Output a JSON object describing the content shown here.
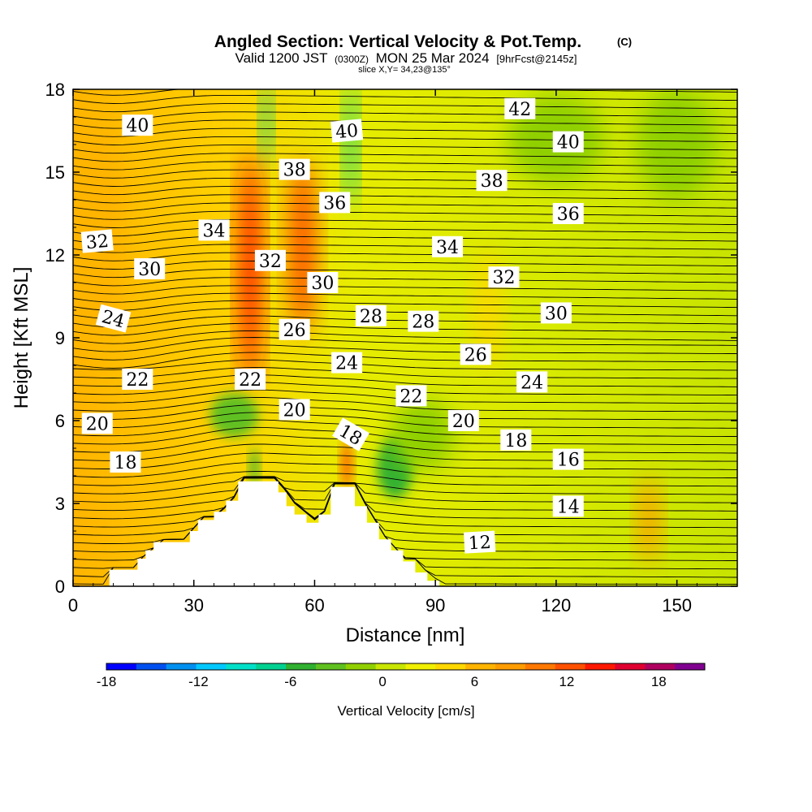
{
  "chart_data": {
    "type": "heatmap",
    "title": "Angled Section: Vertical Velocity & Pot.Temp.",
    "title_units": "(C)",
    "subtitle_main": "Valid 1200 JST",
    "subtitle_small": "(0300Z)",
    "subtitle_date": "MON 25 Mar 2024",
    "subtitle_fcst": "[9hrFcst@2145z]",
    "slice_note": "slice X,Y= 34,23@135°",
    "xlabel": "Distance [nm]",
    "ylabel": "Height [Kft MSL]",
    "xlim": [
      0,
      165
    ],
    "ylim": [
      0,
      18
    ],
    "x_ticks": [
      "0",
      "30",
      "60",
      "90",
      "120",
      "150"
    ],
    "x_tick_values": [
      0,
      30,
      60,
      90,
      120,
      150
    ],
    "y_ticks": [
      "0",
      "3",
      "6",
      "9",
      "12",
      "15",
      "18"
    ],
    "y_tick_values": [
      0,
      3,
      6,
      9,
      12,
      15,
      18
    ],
    "colorbar": {
      "label": "Vertical Velocity [cm/s]",
      "range": [
        -18,
        21
      ],
      "tick_labels": [
        "-18",
        "-12",
        "-6",
        "0",
        "6",
        "12",
        "18"
      ],
      "tick_values": [
        -18,
        -12,
        -6,
        0,
        6,
        12,
        18
      ],
      "colors": [
        "#0000ff",
        "#0050f0",
        "#0090f0",
        "#00c8ff",
        "#00e0c8",
        "#00d090",
        "#30b030",
        "#60c020",
        "#90d000",
        "#c8e600",
        "#f0f000",
        "#ffd800",
        "#ffb400",
        "#ff9c00",
        "#ff7800",
        "#ff5000",
        "#ff1800",
        "#e00030",
        "#b00060",
        "#800090"
      ]
    },
    "terrain_kft": [
      [
        0,
        0
      ],
      [
        9,
        0
      ],
      [
        9,
        0.6
      ],
      [
        10,
        0.6
      ],
      [
        10,
        0.6
      ],
      [
        16,
        0.6
      ],
      [
        16,
        1
      ],
      [
        18,
        1
      ],
      [
        18,
        1.3
      ],
      [
        20,
        1.3
      ],
      [
        20,
        1.6
      ],
      [
        29,
        1.6
      ],
      [
        29,
        2
      ],
      [
        31,
        2
      ],
      [
        31,
        2.4
      ],
      [
        35,
        2.4
      ],
      [
        35,
        2.7
      ],
      [
        38,
        2.7
      ],
      [
        38,
        3.1
      ],
      [
        41,
        3.1
      ],
      [
        41,
        3.8
      ],
      [
        51,
        3.8
      ],
      [
        51,
        3.4
      ],
      [
        53,
        3.4
      ],
      [
        53,
        2.9
      ],
      [
        55,
        2.9
      ],
      [
        55,
        2.6
      ],
      [
        58,
        2.6
      ],
      [
        58,
        2.3
      ],
      [
        61,
        2.3
      ],
      [
        61,
        2.6
      ],
      [
        64,
        2.6
      ],
      [
        64,
        3.6
      ],
      [
        70,
        3.6
      ],
      [
        70,
        2.9
      ],
      [
        73,
        2.9
      ],
      [
        73,
        2.3
      ],
      [
        76,
        2.3
      ],
      [
        76,
        1.7
      ],
      [
        79,
        1.7
      ],
      [
        79,
        1.3
      ],
      [
        82,
        1.3
      ],
      [
        82,
        0.9
      ],
      [
        85,
        0.9
      ],
      [
        85,
        0.5
      ],
      [
        88,
        0.5
      ],
      [
        88,
        0.2
      ],
      [
        91,
        0.2
      ],
      [
        91,
        0
      ],
      [
        165,
        0
      ]
    ],
    "velocity_features": [
      {
        "x": 44,
        "y": 11.5,
        "rx": 2.5,
        "ry": 4.2,
        "value": 14
      },
      {
        "x": 57,
        "y": 12.3,
        "rx": 3.2,
        "ry": 3.2,
        "value": 12
      },
      {
        "x": 68,
        "y": 4.4,
        "rx": 1.2,
        "ry": 0.9,
        "value": 13
      },
      {
        "x": 143,
        "y": 2.4,
        "rx": 2.4,
        "ry": 1.6,
        "value": 9
      },
      {
        "x": 103,
        "y": 10,
        "rx": 3,
        "ry": 2.2,
        "value": 5
      },
      {
        "x": 6,
        "y": 13,
        "rx": 6,
        "ry": 4,
        "value": 6
      },
      {
        "x": 48,
        "y": 16.8,
        "rx": 1.2,
        "ry": 1.5,
        "value": -7
      },
      {
        "x": 69,
        "y": 16,
        "rx": 1.4,
        "ry": 2.3,
        "value": -8
      },
      {
        "x": 80,
        "y": 4.3,
        "rx": 4.5,
        "ry": 1.1,
        "value": -6
      },
      {
        "x": 45,
        "y": 4.3,
        "rx": 1,
        "ry": 0.7,
        "value": -6
      },
      {
        "x": 40,
        "y": 6.2,
        "rx": 6,
        "ry": 0.8,
        "value": -3
      },
      {
        "x": 87,
        "y": 5.5,
        "rx": 8,
        "ry": 1.3,
        "value": -2
      },
      {
        "x": 120,
        "y": 16.2,
        "rx": 12,
        "ry": 1.6,
        "value": -2
      },
      {
        "x": 150,
        "y": 16,
        "rx": 10,
        "ry": 2,
        "value": -2
      }
    ],
    "contour_labels": [
      {
        "text": "42",
        "x": 111,
        "y": 17.3,
        "angle": 0
      },
      {
        "text": "40",
        "x": 16,
        "y": 16.7,
        "angle": 0
      },
      {
        "text": "40",
        "x": 68,
        "y": 16.5,
        "angle": -5
      },
      {
        "text": "40",
        "x": 123,
        "y": 16.1,
        "angle": 0
      },
      {
        "text": "38",
        "x": 55,
        "y": 15.1,
        "angle": 0
      },
      {
        "text": "38",
        "x": 104,
        "y": 14.7,
        "angle": 0
      },
      {
        "text": "36",
        "x": 65,
        "y": 13.9,
        "angle": 0
      },
      {
        "text": "36",
        "x": 123,
        "y": 13.5,
        "angle": 0
      },
      {
        "text": "34",
        "x": 35,
        "y": 12.9,
        "angle": 0
      },
      {
        "text": "34",
        "x": 93,
        "y": 12.3,
        "angle": 0
      },
      {
        "text": "32",
        "x": 6,
        "y": 12.5,
        "angle": -5
      },
      {
        "text": "32",
        "x": 49,
        "y": 11.8,
        "angle": 0
      },
      {
        "text": "32",
        "x": 107,
        "y": 11.2,
        "angle": 0
      },
      {
        "text": "30",
        "x": 19,
        "y": 11.5,
        "angle": 0
      },
      {
        "text": "30",
        "x": 62,
        "y": 11,
        "angle": 0
      },
      {
        "text": "30",
        "x": 120,
        "y": 9.9,
        "angle": 0
      },
      {
        "text": "28",
        "x": 74,
        "y": 9.8,
        "angle": 0
      },
      {
        "text": "28",
        "x": 87,
        "y": 9.6,
        "angle": 0
      },
      {
        "text": "26",
        "x": 55,
        "y": 9.3,
        "angle": 0
      },
      {
        "text": "26",
        "x": 100,
        "y": 8.4,
        "angle": 0
      },
      {
        "text": "24",
        "x": 10,
        "y": 9.7,
        "angle": 15
      },
      {
        "text": "24",
        "x": 68,
        "y": 8.1,
        "angle": 0
      },
      {
        "text": "24",
        "x": 114,
        "y": 7.4,
        "angle": 0
      },
      {
        "text": "22",
        "x": 16,
        "y": 7.5,
        "angle": 0
      },
      {
        "text": "22",
        "x": 44,
        "y": 7.5,
        "angle": 0
      },
      {
        "text": "22",
        "x": 84,
        "y": 6.9,
        "angle": 0
      },
      {
        "text": "20",
        "x": 6,
        "y": 5.9,
        "angle": 0
      },
      {
        "text": "20",
        "x": 55,
        "y": 6.4,
        "angle": 0
      },
      {
        "text": "20",
        "x": 97,
        "y": 6,
        "angle": 0
      },
      {
        "text": "18",
        "x": 13,
        "y": 4.5,
        "angle": 0
      },
      {
        "text": "18",
        "x": 69,
        "y": 5.5,
        "angle": 30
      },
      {
        "text": "18",
        "x": 110,
        "y": 5.3,
        "angle": 0
      },
      {
        "text": "16",
        "x": 123,
        "y": 4.6,
        "angle": 0
      },
      {
        "text": "14",
        "x": 123,
        "y": 2.9,
        "angle": 0
      },
      {
        "text": "12",
        "x": 101,
        "y": 1.6,
        "angle": -3
      }
    ]
  }
}
